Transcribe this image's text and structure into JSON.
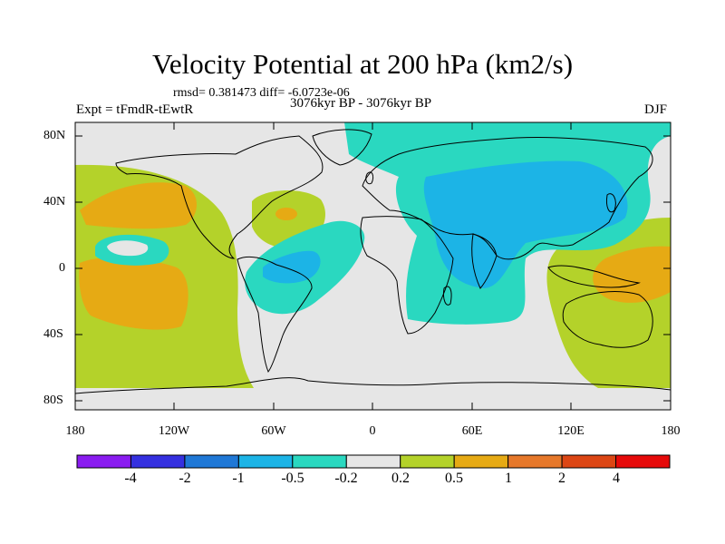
{
  "title": "Velocity Potential at 200 hPa (km2/s)",
  "stats": "rmsd= 0.381473 diff= -6.0723e-06",
  "experiment": "Expt = tFmdR-tEwtR",
  "period": "3076kyr BP - 3076kyr BP",
  "season": "DJF",
  "lat_labels": [
    "80N",
    "40N",
    "0",
    "40S",
    "80S"
  ],
  "lon_labels": [
    "180",
    "120W",
    "60W",
    "0",
    "60E",
    "120E",
    "180"
  ],
  "colorbar": {
    "labels": [
      "-4",
      "-2",
      "-1",
      "-0.5",
      "-0.2",
      "0.2",
      "0.5",
      "1",
      "2",
      "4"
    ],
    "colors": [
      "#8a1cf0",
      "#3530e0",
      "#1f78d6",
      "#1cb4e6",
      "#2ad8c0",
      "#e6e6e6",
      "#b4d22a",
      "#e6aa14",
      "#e6782a",
      "#dc4614",
      "#e60a0a"
    ]
  },
  "field_colors": {
    "background": "#e6e6e6",
    "neg_weak": "#2ad8c0",
    "neg_mod": "#1cb4e6",
    "pos_weak": "#b4d22a",
    "pos_mod": "#e6aa14"
  }
}
